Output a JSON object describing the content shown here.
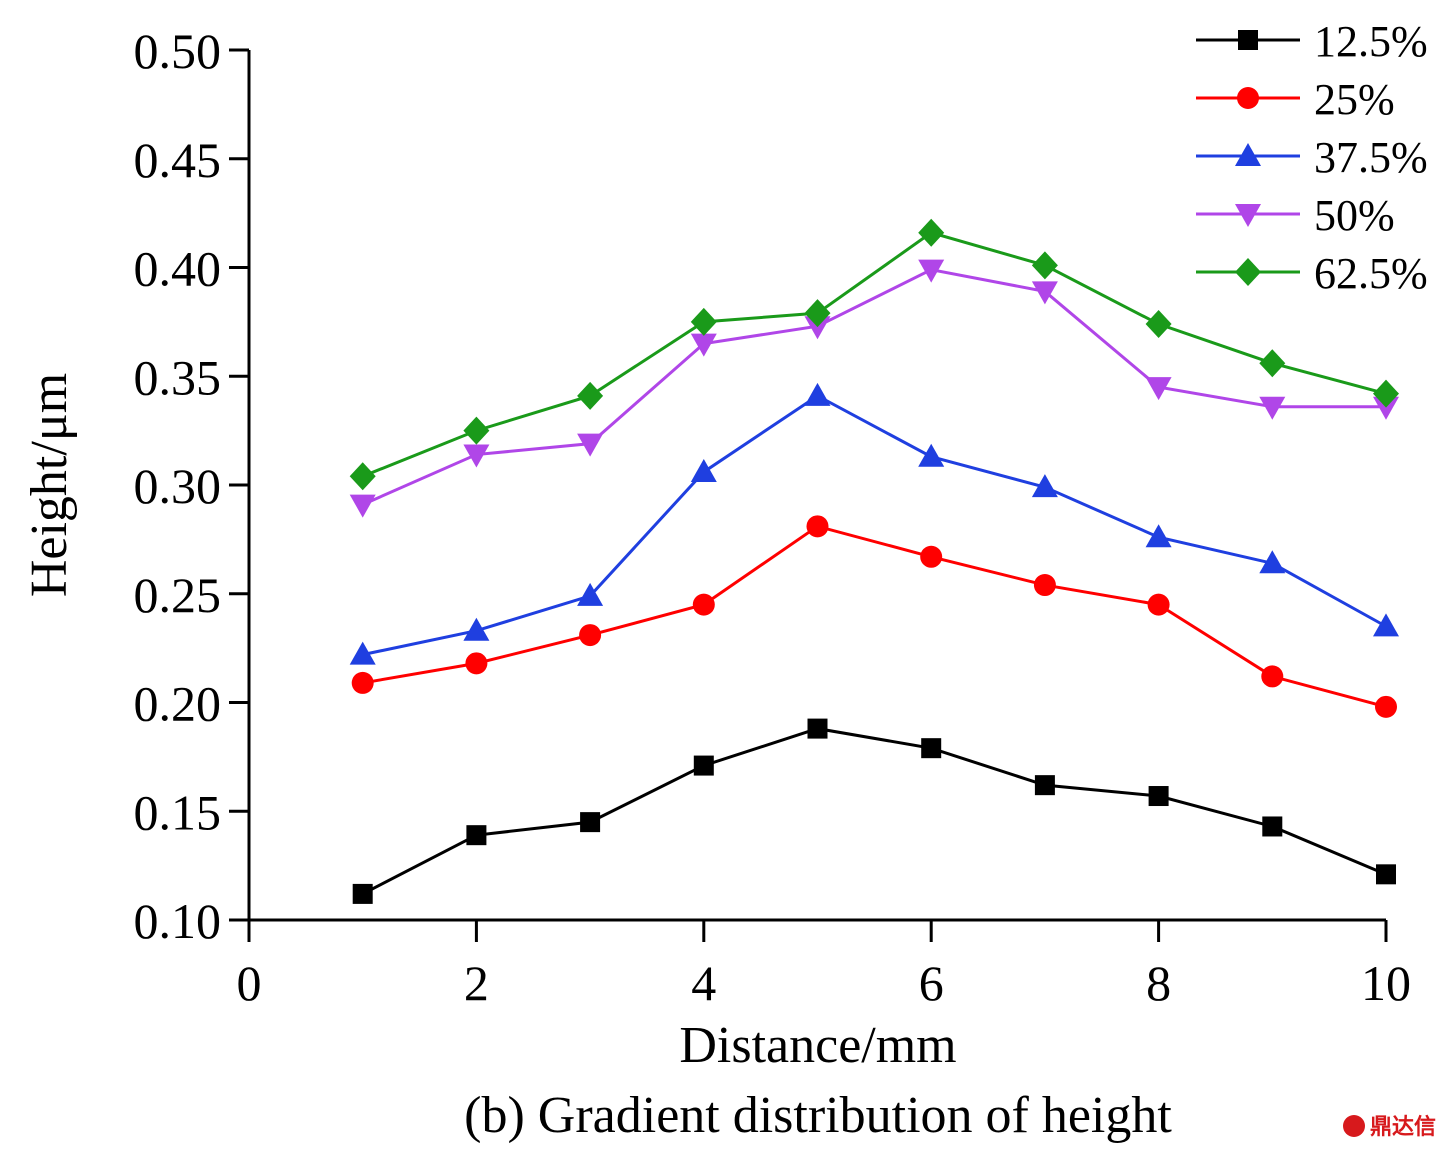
{
  "chart_data": {
    "type": "line",
    "title": "",
    "caption": "(b) Gradient distribution of height",
    "xlabel": "Distance/mm",
    "ylabel": "Height/μm",
    "xlim": [
      0,
      10
    ],
    "ylim": [
      0.1,
      0.5
    ],
    "xticks": [
      0,
      2,
      4,
      6,
      8,
      10
    ],
    "xtick_labels": [
      "0",
      "2",
      "4",
      "6",
      "8",
      "10"
    ],
    "yticks": [
      0.1,
      0.15,
      0.2,
      0.25,
      0.3,
      0.35,
      0.4,
      0.45,
      0.5
    ],
    "ytick_labels": [
      "0.10",
      "0.15",
      "0.20",
      "0.25",
      "0.30",
      "0.35",
      "0.40",
      "0.45",
      "0.50"
    ],
    "grid": false,
    "legend_position": "top-right",
    "x": [
      1,
      2,
      3,
      4,
      5,
      6,
      7,
      8,
      9,
      10
    ],
    "series": [
      {
        "name": "12.5%",
        "color": "#000000",
        "marker": "square",
        "values": [
          0.112,
          0.139,
          0.145,
          0.171,
          0.188,
          0.179,
          0.162,
          0.157,
          0.143,
          0.121
        ]
      },
      {
        "name": "25%",
        "color": "#ff0000",
        "marker": "circle",
        "values": [
          0.209,
          0.218,
          0.231,
          0.245,
          0.281,
          0.267,
          0.254,
          0.245,
          0.212,
          0.198
        ]
      },
      {
        "name": "37.5%",
        "color": "#1f3fe0",
        "marker": "triangle-up",
        "values": [
          0.222,
          0.233,
          0.249,
          0.306,
          0.341,
          0.313,
          0.299,
          0.276,
          0.264,
          0.235
        ]
      },
      {
        "name": "50%",
        "color": "#b046e8",
        "marker": "triangle-down",
        "values": [
          0.291,
          0.314,
          0.319,
          0.365,
          0.373,
          0.399,
          0.389,
          0.345,
          0.336,
          0.336
        ]
      },
      {
        "name": "62.5%",
        "color": "#1a9a1a",
        "marker": "diamond",
        "values": [
          0.304,
          0.325,
          0.341,
          0.375,
          0.379,
          0.416,
          0.401,
          0.374,
          0.356,
          0.342
        ]
      }
    ]
  },
  "watermark": {
    "text": "鼎达信",
    "color": "#d7191c"
  }
}
